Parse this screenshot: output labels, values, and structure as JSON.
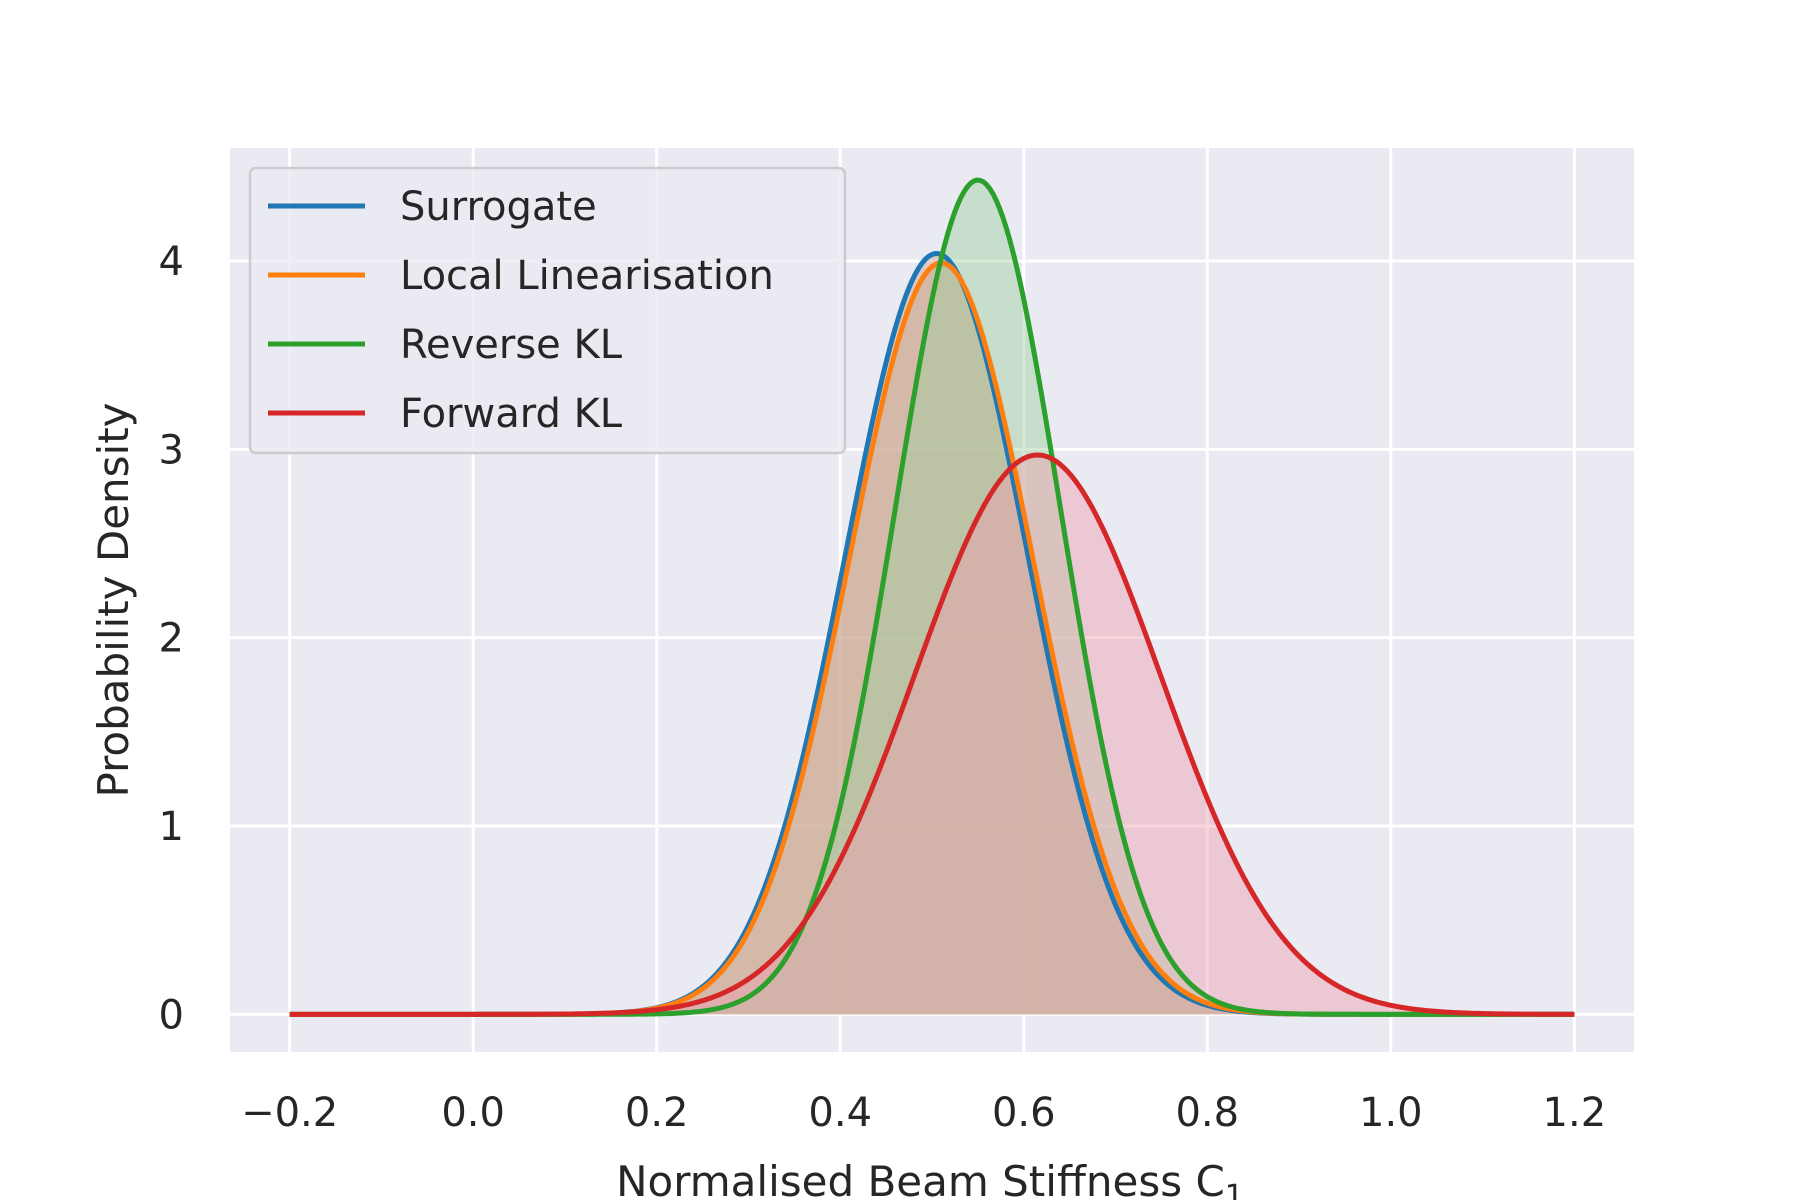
{
  "chart_data": {
    "type": "line",
    "xlabel": "Normalised Beam Stiffness C",
    "xlabel_subscript": "1",
    "ylabel": "Probability Density",
    "xlim": [
      -0.265,
      1.265
    ],
    "ylim": [
      -0.2,
      4.6
    ],
    "x_ticks": [
      -0.2,
      0.0,
      0.2,
      0.4,
      0.6,
      0.8,
      1.0,
      1.2
    ],
    "x_tick_labels": [
      "−0.2",
      "0.0",
      "0.2",
      "0.4",
      "0.6",
      "0.8",
      "1.0",
      "1.2"
    ],
    "y_ticks": [
      0,
      1,
      2,
      3,
      4
    ],
    "y_tick_labels": [
      "0",
      "1",
      "2",
      "3",
      "4"
    ],
    "grid": true,
    "legend_position": "top-left",
    "background_color": "#eaeaf2",
    "x_domain": [
      -0.2,
      1.2
    ],
    "series": [
      {
        "name": "Surrogate",
        "type": "density",
        "mean": 0.505,
        "std": 0.099,
        "peak": 4.04,
        "color": "#1f77b4",
        "fill": "#d7a99f",
        "fill_opacity": 0.55
      },
      {
        "name": "Local Linearisation",
        "type": "density",
        "mean": 0.51,
        "std": 0.1,
        "peak": 3.99,
        "color": "#ff7f0e",
        "fill": "#c6a98a",
        "fill_opacity": 0.45
      },
      {
        "name": "Reverse KL",
        "type": "density",
        "mean": 0.55,
        "std": 0.09,
        "peak": 4.43,
        "color": "#2ca02c",
        "fill": "#9fd19f",
        "fill_opacity": 0.45
      },
      {
        "name": "Forward KL",
        "type": "density",
        "mean": 0.615,
        "std": 0.134,
        "peak": 2.97,
        "color": "#d62728",
        "fill": "#f0a0b0",
        "fill_opacity": 0.45
      }
    ]
  }
}
